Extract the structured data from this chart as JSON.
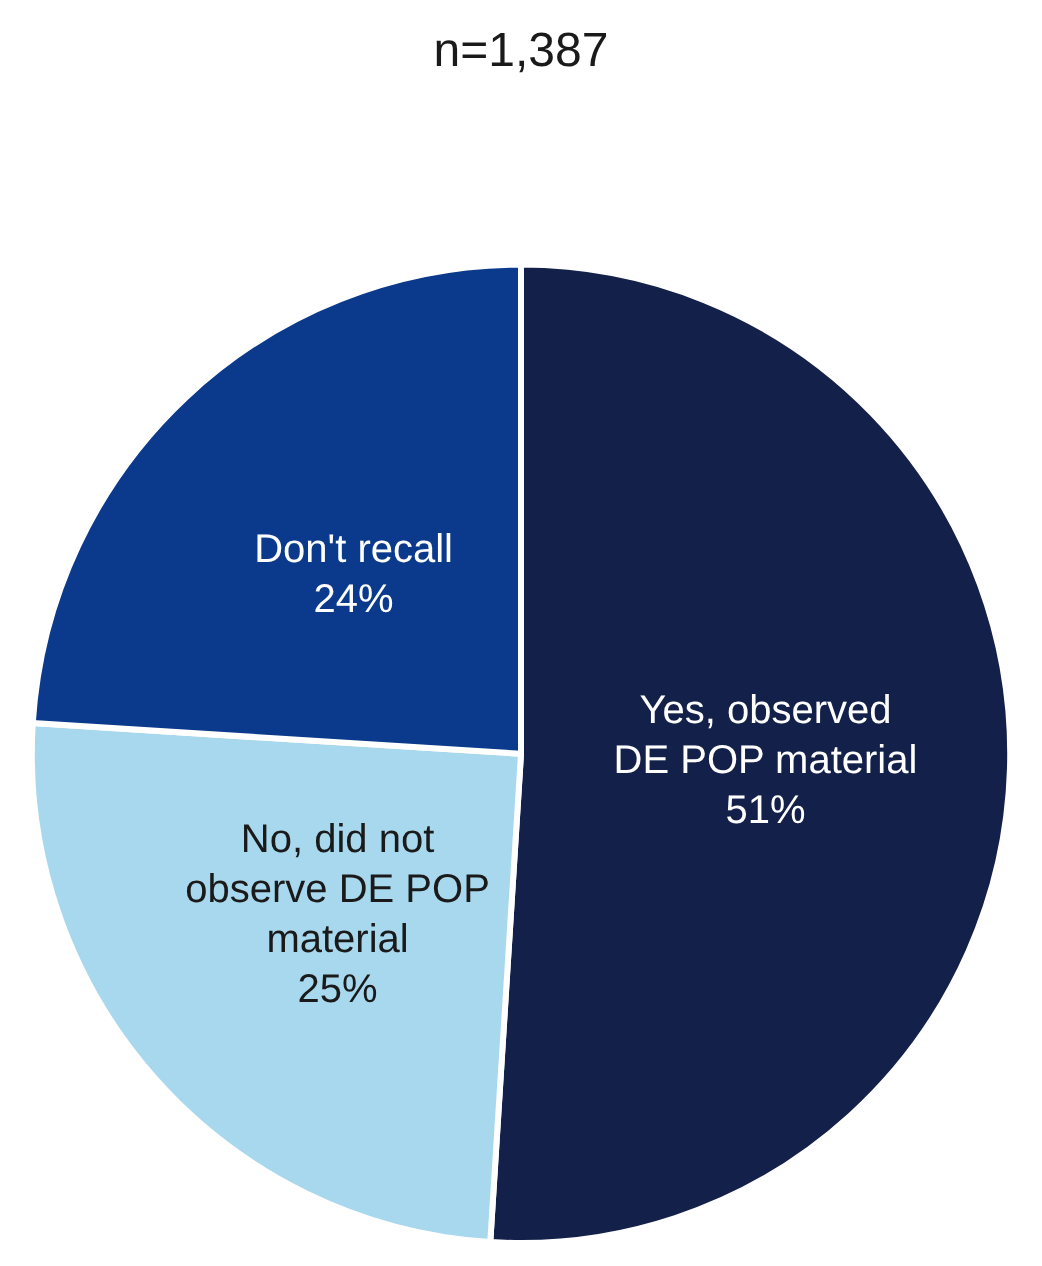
{
  "chart_data": {
    "type": "pie",
    "title": "n=1,387",
    "categories": [
      "Yes, observed DE POP material",
      "No, did not observe DE POP material",
      "Don't recall"
    ],
    "values": [
      51,
      25,
      24
    ],
    "colors": [
      "#13214a",
      "#a8d8ee",
      "#0b3a8c"
    ],
    "value_labels": [
      "51%",
      "25%",
      "24%"
    ],
    "legend": false
  }
}
